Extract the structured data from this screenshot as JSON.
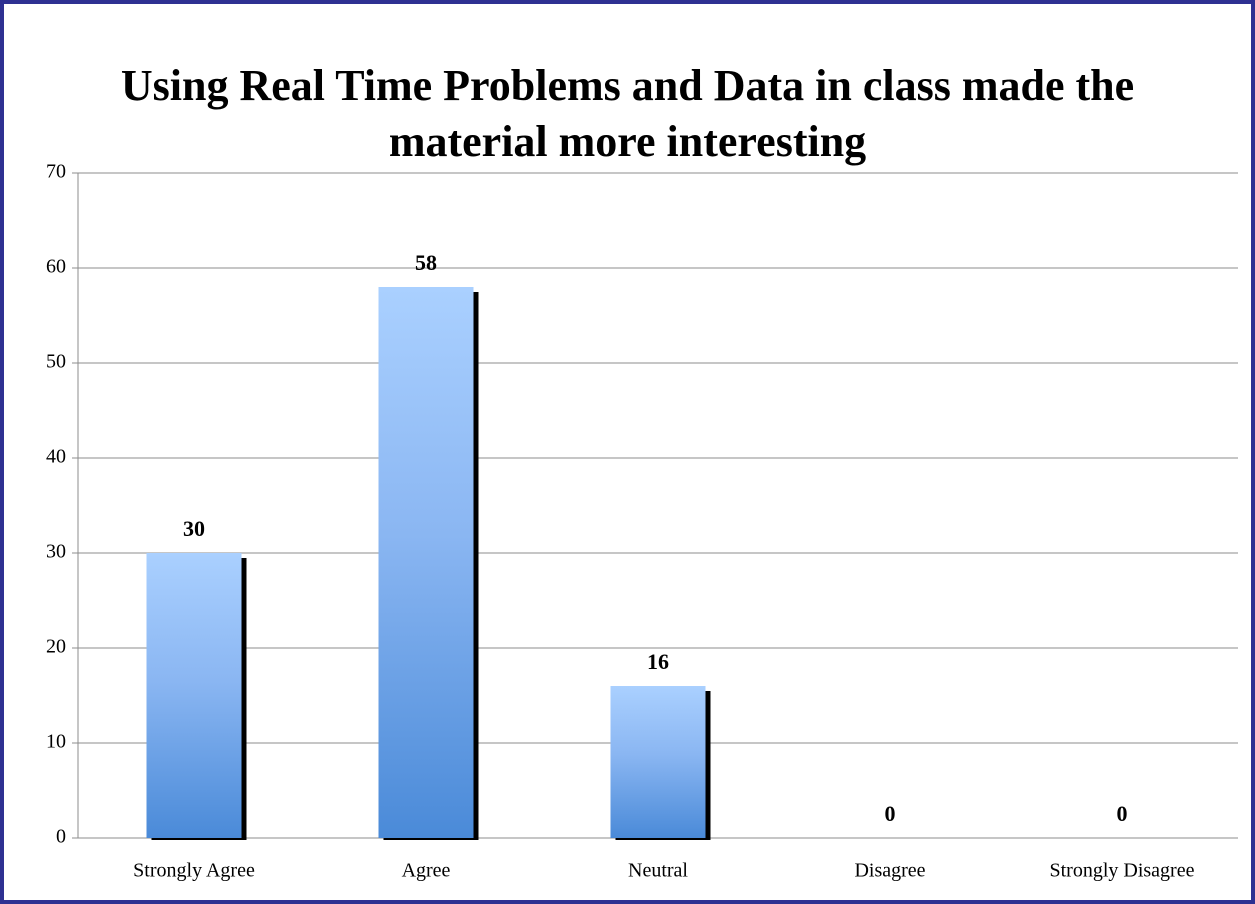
{
  "chart_data": {
    "type": "bar",
    "title": "Using Real Time Problems and Data in class made the material more interesting",
    "categories": [
      "Strongly Agree",
      "Agree",
      "Neutral",
      "Disagree",
      "Strongly Disagree"
    ],
    "values": [
      30,
      58,
      16,
      0,
      0
    ],
    "color": "#4a8ad8",
    "ylim": [
      0,
      70
    ],
    "yticks": [
      0,
      10,
      20,
      30,
      40,
      50,
      60,
      70
    ],
    "grid": true
  }
}
